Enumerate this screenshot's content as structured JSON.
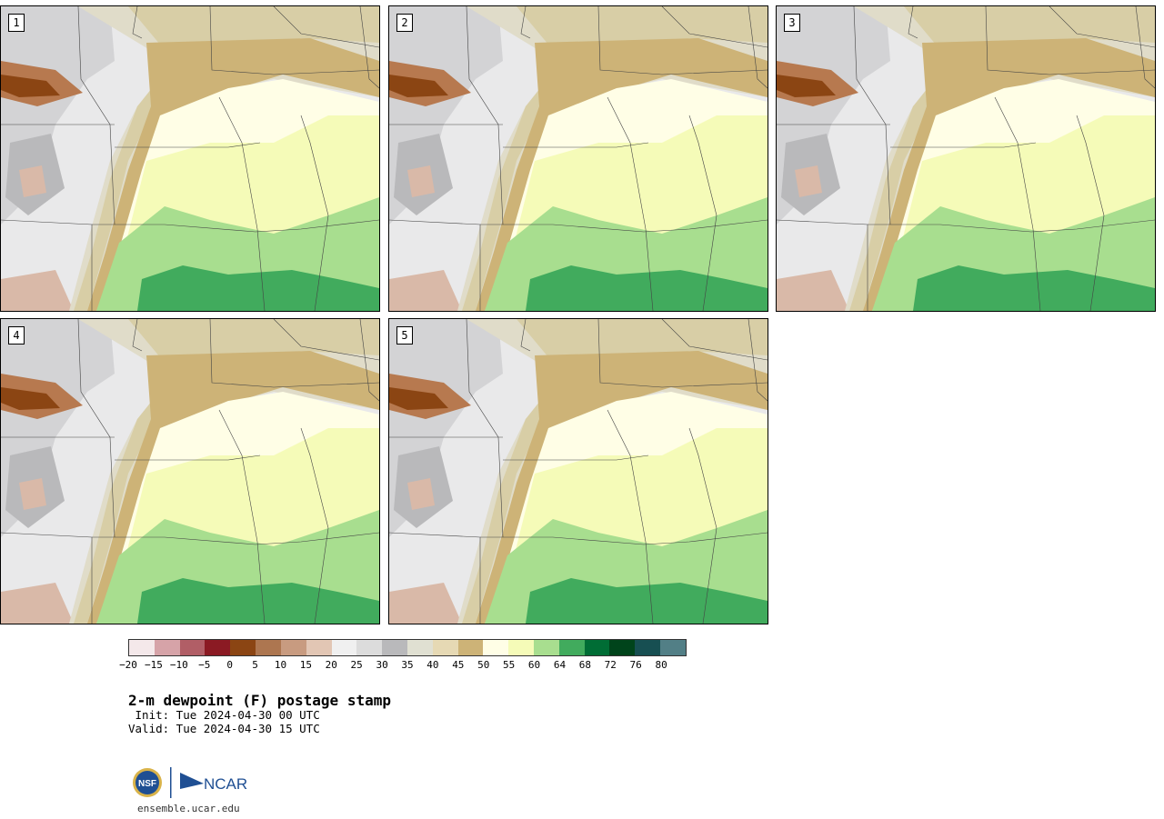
{
  "panels": [
    {
      "label": "1"
    },
    {
      "label": "2"
    },
    {
      "label": "3"
    },
    {
      "label": "4"
    },
    {
      "label": "5"
    }
  ],
  "colorbar": {
    "colors": [
      "#f4e8ea",
      "#d6a3a8",
      "#b15e66",
      "#8b1a23",
      "#8b4513",
      "#ad7650",
      "#c89b80",
      "#e2c6b4",
      "#f0f0f0",
      "#dcdcdc",
      "#b9b9bb",
      "#e0e0d2",
      "#e6d9b4",
      "#cdb377",
      "#fffee6",
      "#f5fbb8",
      "#a8de8f",
      "#41ab5d",
      "#006d35",
      "#00441b",
      "#174f52",
      "#527f86"
    ],
    "ticks": [
      "−20",
      "−15",
      "−10",
      "−5",
      "0",
      "5",
      "10",
      "15",
      "20",
      "25",
      "30",
      "35",
      "40",
      "45",
      "50",
      "55",
      "60",
      "64",
      "68",
      "72",
      "76",
      "80"
    ]
  },
  "title": "2-m dewpoint (F) postage stamp",
  "init": " Init: Tue 2024-04-30 00 UTC",
  "valid": "Valid: Tue 2024-04-30 15 UTC",
  "logos": {
    "nsf": "NSF",
    "ncar": "NCAR"
  },
  "site": "ensemble.ucar.edu"
}
